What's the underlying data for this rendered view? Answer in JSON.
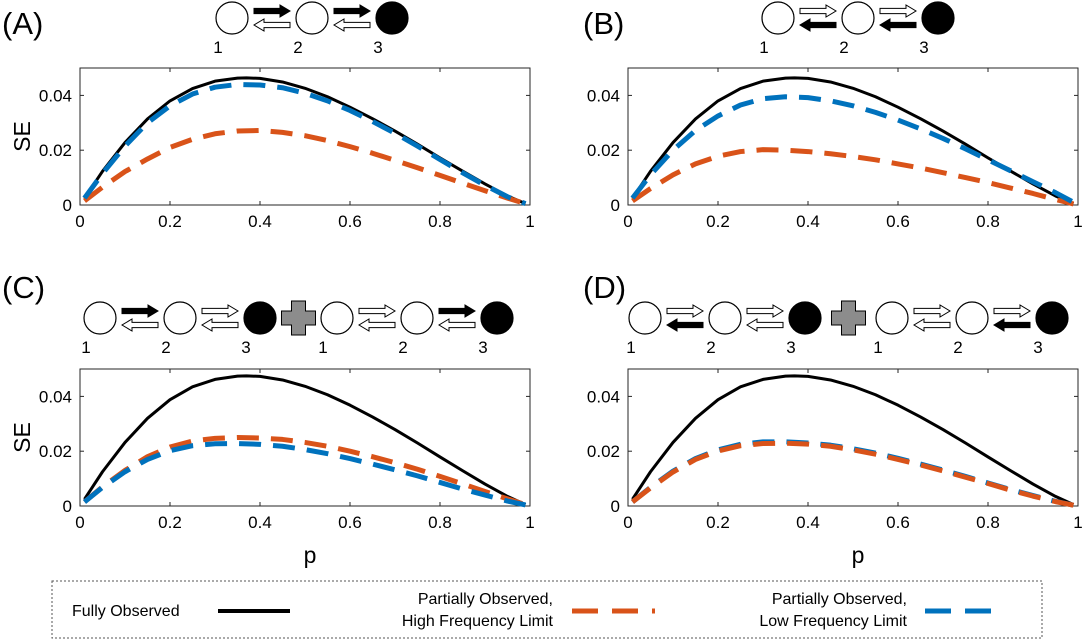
{
  "chart_data": [
    {
      "type": "line",
      "panel": "(A)",
      "diagram": {
        "groups": [
          {
            "nodes": [
              {
                "label": "1",
                "filled": false
              },
              {
                "label": "2",
                "filled": false
              },
              {
                "label": "3",
                "filled": true
              }
            ],
            "links": [
              {
                "fwd": "filled",
                "bwd": "open"
              },
              {
                "fwd": "filled",
                "bwd": "open"
              }
            ]
          }
        ]
      },
      "xlabel": "",
      "ylabel": "SE",
      "xlim": [
        0,
        1
      ],
      "ylim": [
        0,
        0.05
      ],
      "xticks": [
        "0",
        "0.2",
        "0.4",
        "0.6",
        "0.8",
        "1"
      ],
      "yticks": [
        "0",
        "0.02",
        "0.04"
      ],
      "series": [
        {
          "name": "Fully Observed",
          "style": "solid",
          "color": "#000000",
          "x": [
            0.01,
            0.05,
            0.1,
            0.15,
            0.2,
            0.25,
            0.3,
            0.35,
            0.37,
            0.4,
            0.45,
            0.5,
            0.55,
            0.6,
            0.65,
            0.7,
            0.75,
            0.8,
            0.85,
            0.9,
            0.95,
            0.99
          ],
          "y": [
            0.0025,
            0.0123,
            0.0228,
            0.0314,
            0.038,
            0.0425,
            0.0452,
            0.0463,
            0.0464,
            0.0462,
            0.0449,
            0.0426,
            0.0395,
            0.0357,
            0.0315,
            0.027,
            0.0222,
            0.0172,
            0.0124,
            0.0077,
            0.0033,
            0.0005
          ]
        },
        {
          "name": "Partially Observed, High Frequency Limit",
          "style": "dashed",
          "color": "#D95319",
          "x": [
            0.01,
            0.05,
            0.1,
            0.15,
            0.2,
            0.25,
            0.3,
            0.35,
            0.4,
            0.45,
            0.5,
            0.55,
            0.6,
            0.65,
            0.7,
            0.75,
            0.8,
            0.85,
            0.9,
            0.95,
            0.99
          ],
          "y": [
            0.0015,
            0.0065,
            0.0122,
            0.0168,
            0.021,
            0.024,
            0.026,
            0.027,
            0.0272,
            0.0265,
            0.0253,
            0.0235,
            0.0213,
            0.0189,
            0.0163,
            0.0136,
            0.0108,
            0.008,
            0.0052,
            0.0025,
            0.0005
          ]
        },
        {
          "name": "Partially Observed, Low Frequency Limit",
          "style": "dashed",
          "color": "#0072BD",
          "x": [
            0.01,
            0.05,
            0.1,
            0.15,
            0.2,
            0.25,
            0.3,
            0.35,
            0.4,
            0.45,
            0.5,
            0.55,
            0.6,
            0.65,
            0.7,
            0.75,
            0.8,
            0.85,
            0.9,
            0.95,
            0.99
          ],
          "y": [
            0.0025,
            0.0115,
            0.0215,
            0.03,
            0.0362,
            0.0405,
            0.043,
            0.044,
            0.0438,
            0.0428,
            0.0408,
            0.038,
            0.0345,
            0.0305,
            0.0262,
            0.0215,
            0.0166,
            0.0118,
            0.0072,
            0.003,
            0.0005
          ]
        }
      ]
    },
    {
      "type": "line",
      "panel": "(B)",
      "diagram": {
        "groups": [
          {
            "nodes": [
              {
                "label": "1",
                "filled": false
              },
              {
                "label": "2",
                "filled": false
              },
              {
                "label": "3",
                "filled": true
              }
            ],
            "links": [
              {
                "fwd": "open",
                "bwd": "filled"
              },
              {
                "fwd": "open",
                "bwd": "filled"
              }
            ]
          }
        ]
      },
      "xlabel": "",
      "ylabel": "",
      "xlim": [
        0,
        1
      ],
      "ylim": [
        0,
        0.05
      ],
      "xticks": [
        "0",
        "0.2",
        "0.4",
        "0.6",
        "0.8",
        "1"
      ],
      "yticks": [
        "0",
        "0.02",
        "0.04"
      ],
      "series": [
        {
          "name": "Fully Observed",
          "style": "solid",
          "color": "#000000",
          "x": [
            0.01,
            0.05,
            0.1,
            0.15,
            0.2,
            0.25,
            0.3,
            0.35,
            0.37,
            0.4,
            0.45,
            0.5,
            0.55,
            0.6,
            0.65,
            0.7,
            0.75,
            0.8,
            0.85,
            0.9,
            0.95,
            0.99
          ],
          "y": [
            0.0025,
            0.0123,
            0.0228,
            0.0314,
            0.038,
            0.0425,
            0.0452,
            0.0463,
            0.0464,
            0.0462,
            0.0449,
            0.0426,
            0.0395,
            0.0357,
            0.0315,
            0.027,
            0.0222,
            0.0172,
            0.0124,
            0.0077,
            0.0033,
            0.0005
          ]
        },
        {
          "name": "Partially Observed, High Frequency Limit",
          "style": "dashed",
          "color": "#D95319",
          "x": [
            0.01,
            0.05,
            0.1,
            0.15,
            0.2,
            0.25,
            0.3,
            0.35,
            0.4,
            0.45,
            0.5,
            0.55,
            0.6,
            0.65,
            0.7,
            0.75,
            0.8,
            0.85,
            0.9,
            0.95,
            0.99
          ],
          "y": [
            0.0015,
            0.006,
            0.011,
            0.015,
            0.0178,
            0.0195,
            0.0202,
            0.02,
            0.0195,
            0.0187,
            0.0177,
            0.0165,
            0.015,
            0.0135,
            0.0118,
            0.01,
            0.0082,
            0.0062,
            0.0042,
            0.002,
            0.0004
          ]
        },
        {
          "name": "Partially Observed, Low Frequency Limit",
          "style": "dashed",
          "color": "#0072BD",
          "x": [
            0.01,
            0.05,
            0.1,
            0.15,
            0.2,
            0.25,
            0.3,
            0.35,
            0.4,
            0.45,
            0.5,
            0.55,
            0.6,
            0.65,
            0.7,
            0.75,
            0.8,
            0.85,
            0.9,
            0.95,
            0.99
          ],
          "y": [
            0.0025,
            0.011,
            0.02,
            0.0272,
            0.0325,
            0.0365,
            0.0388,
            0.0395,
            0.0392,
            0.038,
            0.0362,
            0.0338,
            0.031,
            0.0278,
            0.0243,
            0.0205,
            0.0165,
            0.0125,
            0.0085,
            0.0045,
            0.001
          ]
        }
      ]
    },
    {
      "type": "line",
      "panel": "(C)",
      "diagram": {
        "groups": [
          {
            "nodes": [
              {
                "label": "1",
                "filled": false
              },
              {
                "label": "2",
                "filled": false
              },
              {
                "label": "3",
                "filled": true
              }
            ],
            "links": [
              {
                "fwd": "filled",
                "bwd": "open"
              },
              {
                "fwd": "open",
                "bwd": "open"
              }
            ]
          },
          {
            "nodes": [
              {
                "label": "1",
                "filled": false
              },
              {
                "label": "2",
                "filled": false
              },
              {
                "label": "3",
                "filled": true
              }
            ],
            "links": [
              {
                "fwd": "open",
                "bwd": "open"
              },
              {
                "fwd": "filled",
                "bwd": "open"
              }
            ]
          }
        ]
      },
      "xlabel": "p",
      "ylabel": "SE",
      "xlim": [
        0,
        1
      ],
      "ylim": [
        0,
        0.05
      ],
      "xticks": [
        "0",
        "0.2",
        "0.4",
        "0.6",
        "0.8",
        "1"
      ],
      "yticks": [
        "0",
        "0.02",
        "0.04"
      ],
      "series": [
        {
          "name": "Fully Observed",
          "style": "solid",
          "color": "#000000",
          "x": [
            0.01,
            0.05,
            0.1,
            0.15,
            0.2,
            0.25,
            0.3,
            0.35,
            0.37,
            0.4,
            0.45,
            0.5,
            0.55,
            0.6,
            0.65,
            0.7,
            0.75,
            0.8,
            0.85,
            0.9,
            0.95,
            0.99
          ],
          "y": [
            0.0025,
            0.0125,
            0.0232,
            0.032,
            0.0388,
            0.0435,
            0.0462,
            0.0474,
            0.0475,
            0.0473,
            0.046,
            0.0437,
            0.0406,
            0.0368,
            0.0325,
            0.0279,
            0.023,
            0.0179,
            0.0129,
            0.008,
            0.0035,
            0.0005
          ]
        },
        {
          "name": "Partially Observed, High Frequency Limit",
          "style": "dashed",
          "color": "#D95319",
          "x": [
            0.01,
            0.05,
            0.1,
            0.15,
            0.2,
            0.25,
            0.3,
            0.35,
            0.4,
            0.45,
            0.5,
            0.55,
            0.6,
            0.65,
            0.7,
            0.75,
            0.8,
            0.85,
            0.9,
            0.95,
            0.99
          ],
          "y": [
            0.0015,
            0.007,
            0.013,
            0.018,
            0.0215,
            0.0237,
            0.0247,
            0.025,
            0.0248,
            0.0243,
            0.0232,
            0.0218,
            0.02,
            0.018,
            0.0158,
            0.0134,
            0.0108,
            0.0081,
            0.0053,
            0.0026,
            0.0005
          ]
        },
        {
          "name": "Partially Observed, Low Frequency Limit",
          "style": "dashed",
          "color": "#0072BD",
          "x": [
            0.01,
            0.05,
            0.1,
            0.15,
            0.2,
            0.25,
            0.3,
            0.35,
            0.4,
            0.45,
            0.5,
            0.55,
            0.6,
            0.65,
            0.7,
            0.75,
            0.8,
            0.85,
            0.9,
            0.95,
            0.99
          ],
          "y": [
            0.0015,
            0.0068,
            0.0125,
            0.017,
            0.0202,
            0.022,
            0.0227,
            0.0228,
            0.0225,
            0.0218,
            0.0206,
            0.0191,
            0.0173,
            0.0153,
            0.0132,
            0.011,
            0.0086,
            0.0062,
            0.004,
            0.0018,
            0.0004
          ]
        }
      ]
    },
    {
      "type": "line",
      "panel": "(D)",
      "diagram": {
        "groups": [
          {
            "nodes": [
              {
                "label": "1",
                "filled": false
              },
              {
                "label": "2",
                "filled": false
              },
              {
                "label": "3",
                "filled": true
              }
            ],
            "links": [
              {
                "fwd": "open",
                "bwd": "filled"
              },
              {
                "fwd": "open",
                "bwd": "open"
              }
            ]
          },
          {
            "nodes": [
              {
                "label": "1",
                "filled": false
              },
              {
                "label": "2",
                "filled": false
              },
              {
                "label": "3",
                "filled": true
              }
            ],
            "links": [
              {
                "fwd": "open",
                "bwd": "open"
              },
              {
                "fwd": "open",
                "bwd": "filled"
              }
            ]
          }
        ]
      },
      "xlabel": "p",
      "ylabel": "",
      "xlim": [
        0,
        1
      ],
      "ylim": [
        0,
        0.05
      ],
      "xticks": [
        "0",
        "0.2",
        "0.4",
        "0.6",
        "0.8",
        "1"
      ],
      "yticks": [
        "0",
        "0.02",
        "0.04"
      ],
      "series": [
        {
          "name": "Fully Observed",
          "style": "solid",
          "color": "#000000",
          "x": [
            0.01,
            0.05,
            0.1,
            0.15,
            0.2,
            0.25,
            0.3,
            0.35,
            0.37,
            0.4,
            0.45,
            0.5,
            0.55,
            0.6,
            0.65,
            0.7,
            0.75,
            0.8,
            0.85,
            0.9,
            0.95,
            0.99
          ],
          "y": [
            0.0025,
            0.0125,
            0.0232,
            0.032,
            0.0388,
            0.0435,
            0.0462,
            0.0474,
            0.0475,
            0.0473,
            0.046,
            0.0437,
            0.0406,
            0.0368,
            0.0325,
            0.0279,
            0.023,
            0.0179,
            0.0129,
            0.008,
            0.0035,
            0.0005
          ]
        },
        {
          "name": "Partially Observed, Low Frequency Limit",
          "style": "dashed",
          "color": "#0072BD",
          "x": [
            0.01,
            0.05,
            0.1,
            0.15,
            0.2,
            0.25,
            0.3,
            0.35,
            0.4,
            0.45,
            0.5,
            0.55,
            0.6,
            0.65,
            0.7,
            0.75,
            0.8,
            0.85,
            0.9,
            0.95,
            0.99
          ],
          "y": [
            0.0015,
            0.0068,
            0.0127,
            0.0173,
            0.0205,
            0.0225,
            0.0234,
            0.0234,
            0.023,
            0.0222,
            0.0209,
            0.0193,
            0.0174,
            0.0153,
            0.0131,
            0.0108,
            0.0084,
            0.006,
            0.0038,
            0.0017,
            0.0003
          ]
        },
        {
          "name": "Partially Observed, High Frequency Limit",
          "style": "dashed",
          "color": "#D95319",
          "x": [
            0.01,
            0.05,
            0.1,
            0.15,
            0.2,
            0.25,
            0.3,
            0.35,
            0.4,
            0.45,
            0.5,
            0.55,
            0.6,
            0.65,
            0.7,
            0.75,
            0.8,
            0.85,
            0.9,
            0.95,
            0.99
          ],
          "y": [
            0.0015,
            0.0066,
            0.0124,
            0.017,
            0.0201,
            0.022,
            0.0228,
            0.0229,
            0.0226,
            0.0218,
            0.0205,
            0.0189,
            0.017,
            0.015,
            0.0128,
            0.0105,
            0.0082,
            0.0058,
            0.0036,
            0.0016,
            0.0003
          ]
        }
      ]
    }
  ],
  "legend": {
    "items": [
      {
        "text_lines": [
          "Fully Observed"
        ],
        "style": "solid",
        "color": "#000000"
      },
      {
        "text_lines": [
          "Partially Observed,",
          "High Frequency Limit"
        ],
        "style": "dashed",
        "color": "#D95319"
      },
      {
        "text_lines": [
          "Partially Observed,",
          "Low Frequency Limit"
        ],
        "style": "dashed",
        "color": "#0072BD"
      }
    ]
  }
}
